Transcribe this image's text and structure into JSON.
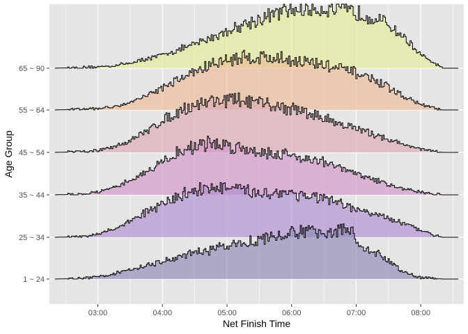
{
  "chart_data": {
    "type": "ridgeline",
    "xlabel": "Net Finish Time",
    "ylabel": "Age Group",
    "x_range": [
      "02:15",
      "08:40"
    ],
    "x_ticks": [
      "03:00",
      "04:00",
      "05:00",
      "06:00",
      "07:00",
      "08:00"
    ],
    "grid": true,
    "legend": "none",
    "panel_background": "#e5e5e5",
    "grid_color": "#ffffff",
    "outline_color": "#000000",
    "fill_opacity": 0.65,
    "groups": [
      {
        "name": "1 ~ 24",
        "color": "#8e8bb9",
        "x": [
          "02:20",
          "02:45",
          "03:00",
          "03:15",
          "03:30",
          "03:45",
          "04:00",
          "04:15",
          "04:30",
          "04:45",
          "05:00",
          "05:15",
          "05:30",
          "05:45",
          "06:00",
          "06:15",
          "06:30",
          "06:45",
          "06:55",
          "07:00",
          "07:10",
          "07:20",
          "07:30",
          "07:40",
          "07:50",
          "08:00",
          "08:10",
          "08:20"
        ],
        "y": [
          0,
          0.01,
          0.04,
          0.08,
          0.14,
          0.2,
          0.26,
          0.33,
          0.39,
          0.44,
          0.5,
          0.55,
          0.6,
          0.65,
          0.69,
          0.72,
          0.72,
          0.73,
          0.78,
          0.5,
          0.45,
          0.38,
          0.28,
          0.15,
          0.07,
          0.02,
          0.01,
          0
        ]
      },
      {
        "name": "25 ~ 34",
        "color": "#b18ed0",
        "x": [
          "02:20",
          "02:45",
          "03:00",
          "03:15",
          "03:30",
          "03:45",
          "04:00",
          "04:15",
          "04:30",
          "04:45",
          "05:00",
          "05:15",
          "05:30",
          "05:45",
          "06:00",
          "06:15",
          "06:30",
          "06:45",
          "07:00",
          "07:15",
          "07:30",
          "07:45",
          "08:00",
          "08:20"
        ],
        "y": [
          0,
          0.01,
          0.05,
          0.12,
          0.25,
          0.38,
          0.5,
          0.62,
          0.72,
          0.75,
          0.74,
          0.7,
          0.68,
          0.67,
          0.68,
          0.62,
          0.58,
          0.5,
          0.42,
          0.36,
          0.28,
          0.2,
          0.1,
          0
        ]
      },
      {
        "name": "35 ~ 44",
        "color": "#d295c7",
        "x": [
          "02:20",
          "02:45",
          "03:00",
          "03:15",
          "03:30",
          "03:45",
          "04:00",
          "04:15",
          "04:30",
          "04:45",
          "05:00",
          "05:15",
          "05:30",
          "05:45",
          "06:00",
          "06:15",
          "06:30",
          "06:45",
          "07:00",
          "07:15",
          "07:30",
          "07:45",
          "08:00",
          "08:20"
        ],
        "y": [
          0,
          0.01,
          0.04,
          0.1,
          0.22,
          0.35,
          0.5,
          0.64,
          0.74,
          0.78,
          0.75,
          0.7,
          0.66,
          0.62,
          0.6,
          0.55,
          0.5,
          0.4,
          0.32,
          0.24,
          0.16,
          0.09,
          0.04,
          0
        ]
      },
      {
        "name": "45 ~ 54",
        "color": "#dca9b5",
        "x": [
          "02:20",
          "02:45",
          "03:00",
          "03:15",
          "03:30",
          "03:45",
          "04:00",
          "04:15",
          "04:30",
          "04:45",
          "05:00",
          "05:15",
          "05:30",
          "05:45",
          "06:00",
          "06:15",
          "06:30",
          "06:45",
          "07:00",
          "07:15",
          "07:30",
          "07:45",
          "08:00",
          "08:20"
        ],
        "y": [
          0,
          0.01,
          0.03,
          0.08,
          0.18,
          0.32,
          0.48,
          0.62,
          0.72,
          0.78,
          0.8,
          0.78,
          0.74,
          0.7,
          0.66,
          0.6,
          0.52,
          0.44,
          0.36,
          0.28,
          0.2,
          0.12,
          0.05,
          0
        ]
      },
      {
        "name": "55 ~ 64",
        "color": "#ecbb98",
        "x": [
          "02:20",
          "02:45",
          "03:00",
          "03:15",
          "03:30",
          "03:45",
          "04:00",
          "04:15",
          "04:30",
          "04:45",
          "05:00",
          "05:15",
          "05:30",
          "05:45",
          "06:00",
          "06:15",
          "06:30",
          "06:45",
          "07:00",
          "07:15",
          "07:30",
          "07:45",
          "08:00",
          "08:20"
        ],
        "y": [
          0,
          0.01,
          0.02,
          0.05,
          0.12,
          0.22,
          0.34,
          0.46,
          0.58,
          0.68,
          0.76,
          0.8,
          0.8,
          0.78,
          0.76,
          0.72,
          0.68,
          0.62,
          0.56,
          0.46,
          0.34,
          0.2,
          0.08,
          0
        ]
      },
      {
        "name": "65 ~ 90",
        "color": "#e3ed95",
        "x": [
          "02:20",
          "02:45",
          "03:00",
          "03:15",
          "03:30",
          "03:45",
          "04:00",
          "04:15",
          "04:30",
          "04:45",
          "05:00",
          "05:15",
          "05:30",
          "05:45",
          "06:00",
          "06:15",
          "06:30",
          "06:45",
          "07:00",
          "07:15",
          "07:30",
          "07:45",
          "08:00",
          "08:20"
        ],
        "y": [
          0,
          0.01,
          0.02,
          0.04,
          0.08,
          0.14,
          0.2,
          0.28,
          0.36,
          0.46,
          0.56,
          0.66,
          0.74,
          0.82,
          0.88,
          0.9,
          0.9,
          0.88,
          0.84,
          0.78,
          0.66,
          0.46,
          0.2,
          0
        ]
      }
    ]
  }
}
